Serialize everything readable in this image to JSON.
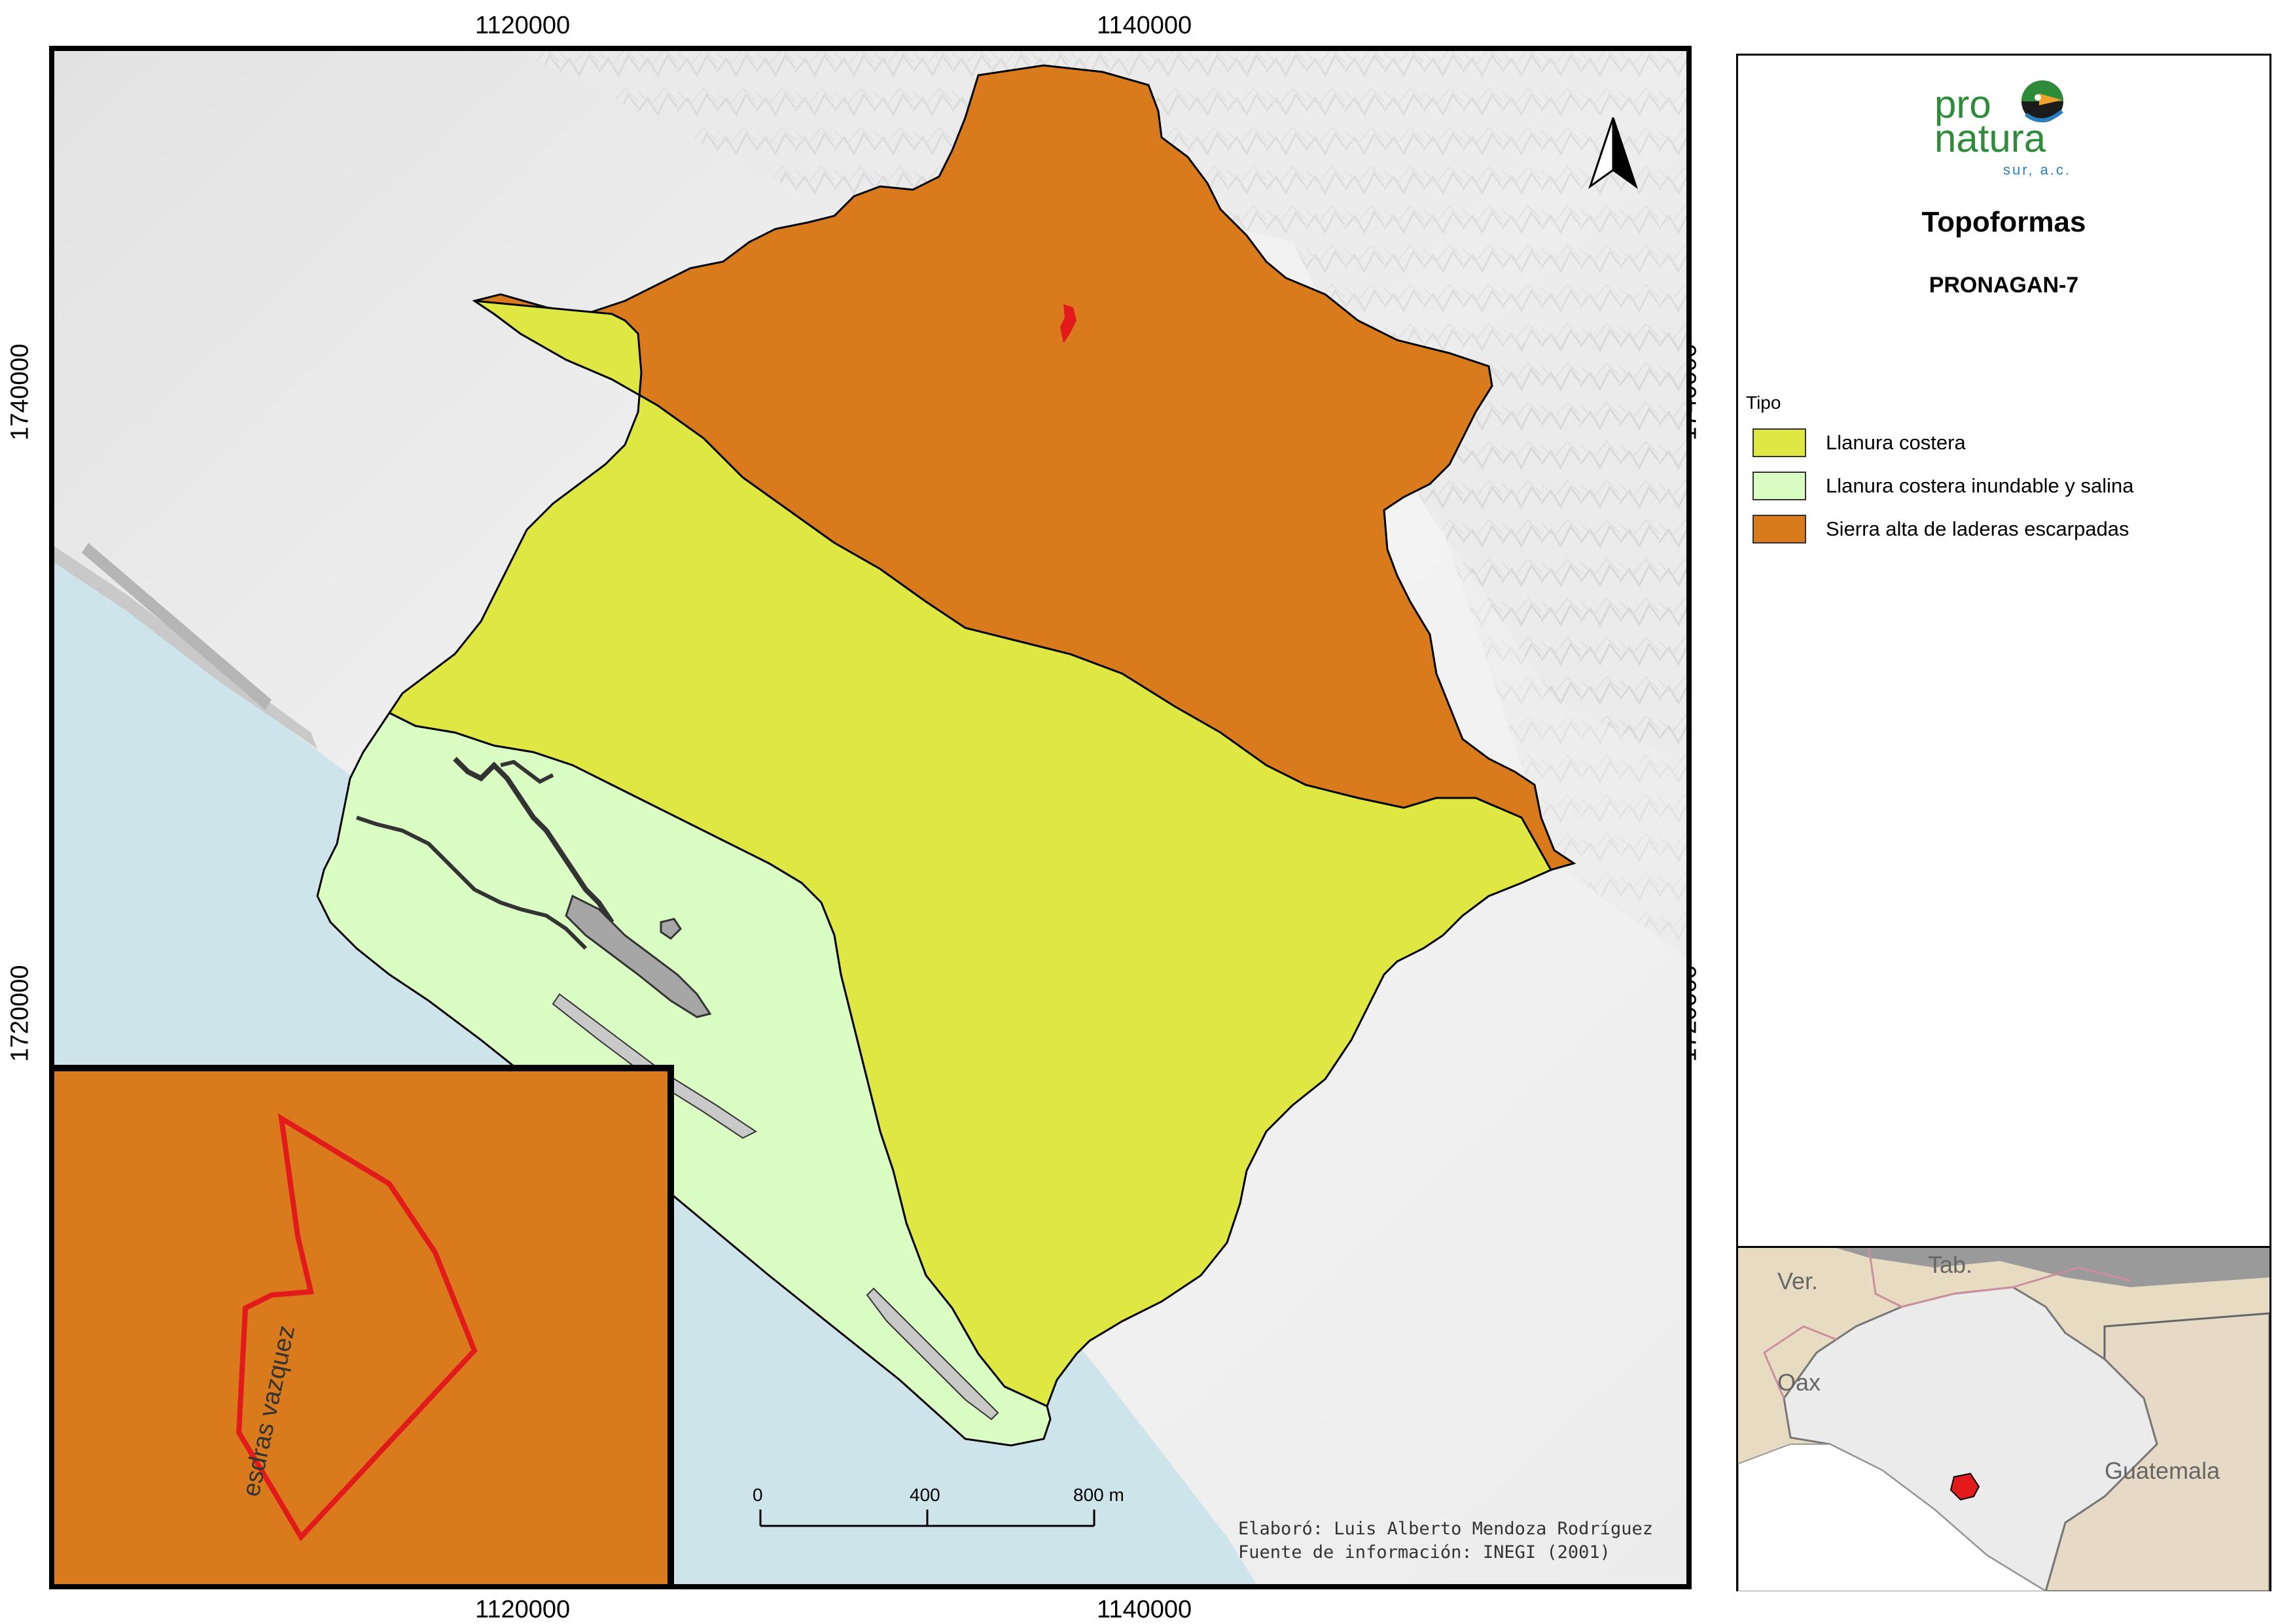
{
  "map": {
    "x_ticks": [
      "1120000",
      "1140000"
    ],
    "y_ticks": [
      "1740000",
      "1720000"
    ],
    "north_arrow": "north-arrow-icon"
  },
  "legend": {
    "logo": {
      "line1": "pro",
      "line2": "natura",
      "line3": "sur, a.c."
    },
    "title": "Topoformas",
    "subtitle": "PRONAGAN-7",
    "field_label": "Tipo",
    "items": [
      {
        "label": "Llanura costera",
        "color": "#dfe843"
      },
      {
        "label": "Llanura costera inundable y salina",
        "color": "#d9fdc3"
      },
      {
        "label": "Sierra alta de laderas escarpadas",
        "color": "#d97b1c"
      }
    ]
  },
  "scale_bar": {
    "labels": [
      "0",
      "400",
      "800 m"
    ]
  },
  "credits": {
    "line1": "Elaboró: Luis Alberto Mendoza Rodríguez",
    "line2": "Fuente de información: INEGI (2001)"
  },
  "inset_detail": {
    "label": "esdras vazquez",
    "fill": "#d97b1c",
    "outline": "#e31a1c"
  },
  "locator": {
    "labels": [
      "Ver.",
      "Tab.",
      "Oax",
      "Guatemala"
    ],
    "highlight": "#e31a1c"
  },
  "colors": {
    "sea": "#cce4ea",
    "land": "#f0f0f0",
    "river": "#a6a6a6"
  }
}
